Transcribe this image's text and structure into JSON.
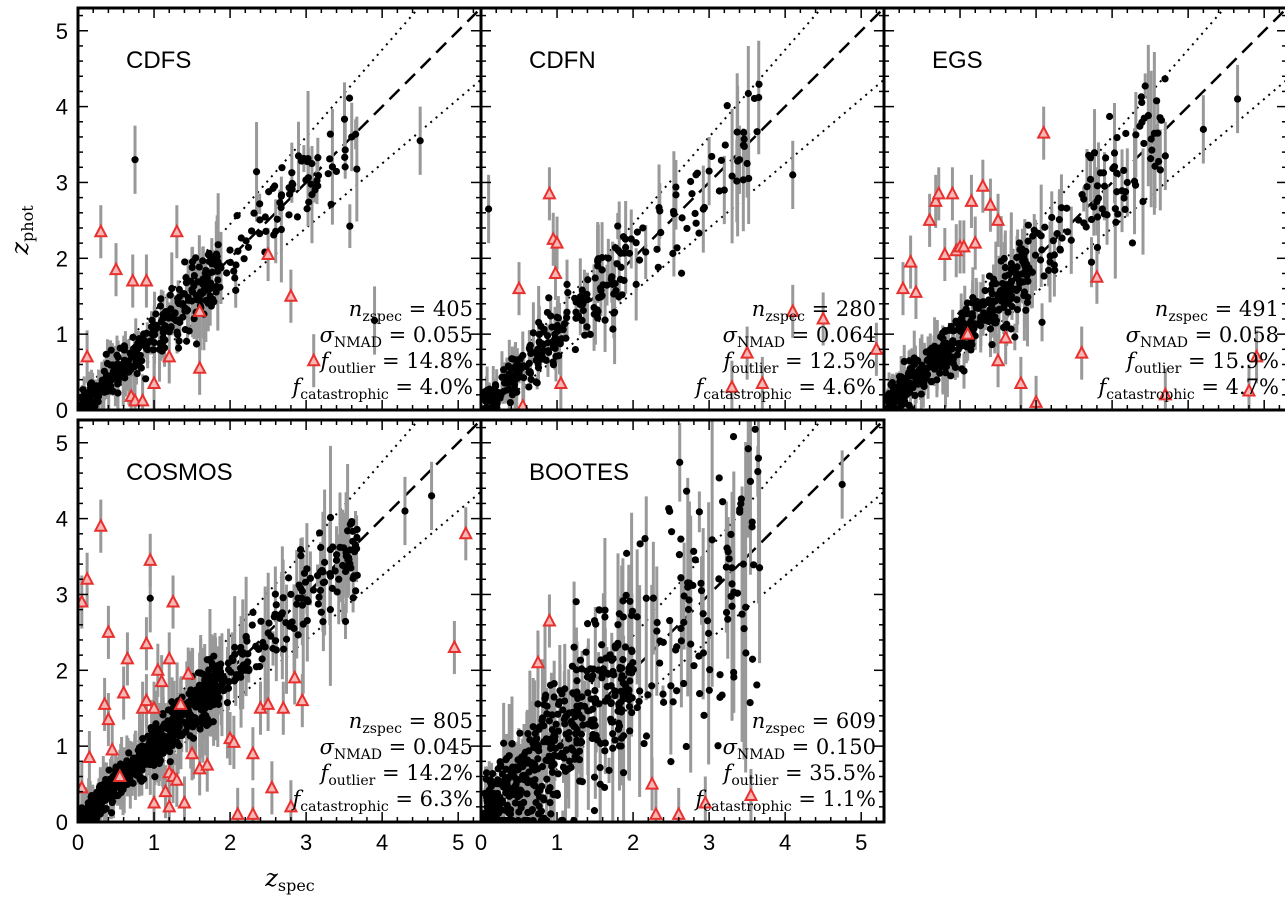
{
  "figure": {
    "xlabel": "z_spec",
    "ylabel": "z_phot",
    "xlim": [
      0,
      5.3
    ],
    "ylim": [
      0,
      5.3
    ],
    "x_ticks": [
      "0",
      "1",
      "2",
      "3",
      "4",
      "5"
    ],
    "y_ticks": [
      "0",
      "1",
      "2",
      "3",
      "4",
      "5"
    ],
    "colors": {
      "point": "#000000",
      "errorbar": "#999999",
      "outlier": "#e8302e",
      "reference_line": "#000000"
    }
  },
  "chart_data": [
    {
      "type": "scatter",
      "field": "CDFS",
      "stats": {
        "n_zspec": "405",
        "sigma_nmad": "0.055",
        "f_outlier": "14.8%",
        "f_catastrophic": "4.0%"
      },
      "outliers": [
        [
          0.12,
          0.7
        ],
        [
          0.3,
          2.35
        ],
        [
          0.5,
          1.85
        ],
        [
          0.7,
          0.18
        ],
        [
          0.72,
          1.7
        ],
        [
          0.75,
          0.12
        ],
        [
          0.85,
          0.12
        ],
        [
          0.9,
          1.7
        ],
        [
          1.0,
          0.35
        ],
        [
          1.2,
          0.7
        ],
        [
          1.3,
          2.35
        ],
        [
          1.6,
          0.55
        ],
        [
          1.6,
          1.3
        ],
        [
          2.5,
          2.05
        ],
        [
          2.8,
          1.5
        ],
        [
          3.1,
          0.65
        ]
      ],
      "highlights": [
        [
          0.75,
          3.3
        ],
        [
          3.6,
          3.6
        ],
        [
          3.9,
          1.18
        ],
        [
          4.5,
          3.55
        ],
        [
          2.9,
          3.35
        ]
      ]
    },
    {
      "type": "scatter",
      "field": "CDFN",
      "stats": {
        "n_zspec": "280",
        "sigma_nmad": "0.064",
        "f_outlier": "12.5%",
        "f_catastrophic": "4.6%"
      },
      "outliers": [
        [
          0.5,
          1.6
        ],
        [
          0.55,
          0.05
        ],
        [
          0.9,
          2.85
        ],
        [
          0.95,
          2.25
        ],
        [
          1.0,
          2.2
        ],
        [
          0.98,
          1.8
        ],
        [
          1.05,
          0.35
        ],
        [
          3.3,
          0.3
        ],
        [
          3.5,
          0.75
        ],
        [
          3.7,
          0.35
        ],
        [
          4.1,
          1.3
        ],
        [
          4.5,
          1.2
        ],
        [
          5.2,
          0.8
        ]
      ],
      "highlights": [
        [
          0.1,
          2.65
        ],
        [
          3.0,
          3.15
        ],
        [
          3.5,
          3.25
        ],
        [
          3.2,
          2.9
        ],
        [
          4.1,
          3.1
        ],
        [
          3.4,
          3.3
        ]
      ]
    },
    {
      "type": "scatter",
      "field": "EGS",
      "stats": {
        "n_zspec": "491",
        "sigma_nmad": "0.058",
        "f_outlier": "15.9%",
        "f_catastrophic": "4.7%"
      },
      "outliers": [
        [
          0.25,
          1.6
        ],
        [
          0.35,
          1.95
        ],
        [
          0.42,
          1.55
        ],
        [
          0.6,
          2.5
        ],
        [
          0.68,
          2.75
        ],
        [
          0.72,
          2.85
        ],
        [
          0.8,
          2.05
        ],
        [
          0.9,
          2.85
        ],
        [
          0.95,
          2.1
        ],
        [
          1.0,
          2.15
        ],
        [
          1.05,
          2.15
        ],
        [
          1.1,
          1.0
        ],
        [
          1.15,
          2.75
        ],
        [
          1.2,
          2.2
        ],
        [
          1.3,
          2.95
        ],
        [
          1.4,
          2.7
        ],
        [
          1.5,
          0.65
        ],
        [
          1.6,
          0.95
        ],
        [
          1.8,
          0.35
        ],
        [
          1.5,
          2.5
        ],
        [
          2.0,
          0.1
        ],
        [
          2.6,
          0.75
        ],
        [
          2.8,
          1.75
        ],
        [
          3.7,
          0.2
        ],
        [
          4.9,
          0.7
        ],
        [
          4.8,
          0.25
        ],
        [
          2.1,
          3.65
        ]
      ],
      "highlights": [
        [
          4.65,
          4.1
        ],
        [
          4.2,
          3.7
        ],
        [
          3.6,
          3.65
        ],
        [
          3.7,
          3.35
        ],
        [
          2.9,
          2.95
        ],
        [
          2.8,
          2.75
        ],
        [
          3.2,
          3.0
        ]
      ]
    },
    {
      "type": "scatter",
      "field": "COSMOS",
      "stats": {
        "n_zspec": "805",
        "sigma_nmad": "0.045",
        "f_outlier": "14.2%",
        "f_catastrophic": "6.3%"
      },
      "outliers": [
        [
          0.05,
          2.9
        ],
        [
          0.12,
          3.2
        ],
        [
          0.05,
          0.45
        ],
        [
          0.15,
          0.85
        ],
        [
          0.3,
          3.9
        ],
        [
          0.35,
          1.55
        ],
        [
          0.4,
          1.35
        ],
        [
          0.4,
          2.5
        ],
        [
          0.45,
          0.95
        ],
        [
          0.55,
          0.6
        ],
        [
          0.6,
          1.7
        ],
        [
          0.65,
          2.15
        ],
        [
          0.85,
          1.5
        ],
        [
          0.9,
          1.6
        ],
        [
          0.9,
          2.35
        ],
        [
          0.95,
          3.45
        ],
        [
          1.0,
          1.5
        ],
        [
          1.0,
          0.25
        ],
        [
          1.05,
          2.0
        ],
        [
          1.1,
          1.85
        ],
        [
          1.15,
          0.4
        ],
        [
          1.2,
          0.2
        ],
        [
          1.2,
          0.65
        ],
        [
          1.2,
          2.15
        ],
        [
          1.25,
          2.9
        ],
        [
          1.25,
          0.6
        ],
        [
          1.3,
          0.55
        ],
        [
          1.35,
          1.55
        ],
        [
          1.4,
          0.25
        ],
        [
          1.45,
          1.95
        ],
        [
          1.5,
          0.9
        ],
        [
          1.6,
          0.7
        ],
        [
          1.7,
          0.75
        ],
        [
          2.0,
          1.1
        ],
        [
          2.05,
          1.05
        ],
        [
          2.1,
          0.1
        ],
        [
          2.3,
          0.1
        ],
        [
          2.3,
          0.9
        ],
        [
          2.4,
          1.5
        ],
        [
          2.5,
          1.55
        ],
        [
          2.55,
          0.45
        ],
        [
          2.7,
          1.5
        ],
        [
          2.8,
          0.2
        ],
        [
          2.85,
          1.9
        ],
        [
          2.95,
          1.6
        ],
        [
          4.95,
          2.3
        ],
        [
          5.1,
          3.8
        ]
      ],
      "highlights": [
        [
          4.3,
          4.1
        ],
        [
          4.65,
          4.3
        ],
        [
          3.65,
          3.65
        ],
        [
          3.4,
          3.45
        ],
        [
          0.95,
          2.95
        ]
      ]
    },
    {
      "type": "scatter",
      "field": "BOOTES",
      "stats": {
        "n_zspec": "609",
        "sigma_nmad": "0.150",
        "f_outlier": "35.5%",
        "f_catastrophic": "1.1%"
      },
      "outliers": [
        [
          0.75,
          2.1
        ],
        [
          0.9,
          2.65
        ],
        [
          2.25,
          0.5
        ],
        [
          2.3,
          0.1
        ],
        [
          2.6,
          0.1
        ],
        [
          2.95,
          0.25
        ],
        [
          3.55,
          0.35
        ]
      ],
      "highlights": [
        [
          4.75,
          4.45
        ],
        [
          3.45,
          3.4
        ],
        [
          3.3,
          3.35
        ],
        [
          2.9,
          3.05
        ]
      ]
    }
  ]
}
